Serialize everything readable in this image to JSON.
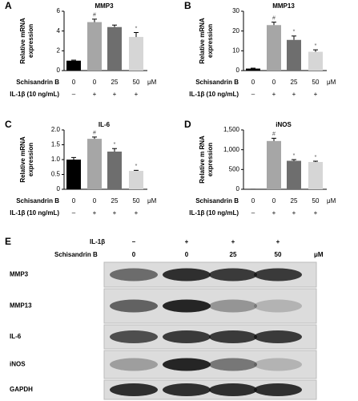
{
  "chart_data": [
    {
      "type": "bar",
      "panel": "A",
      "title": "MMP3",
      "ylabel": [
        "Relative mRNA",
        "expression"
      ],
      "row_labels": [
        "Schisandrin B",
        "IL-1β (10 ng/mL)"
      ],
      "categories": [
        "0",
        "0",
        "25",
        "50"
      ],
      "treatment": [
        "–",
        "+",
        "+",
        "+"
      ],
      "unit": "μM",
      "values": [
        1.0,
        4.9,
        4.4,
        3.4
      ],
      "errors": [
        0.05,
        0.3,
        0.2,
        0.45
      ],
      "annotations": [
        null,
        "#",
        null,
        "*"
      ],
      "colors": [
        "#000000",
        "#a6a6a6",
        "#6e6e6e",
        "#d6d6d6"
      ],
      "ylim": [
        0,
        6
      ],
      "yticks": [
        0,
        2,
        4,
        6
      ]
    },
    {
      "type": "bar",
      "panel": "B",
      "title": "MMP13",
      "ylabel": [
        "Relative mRNA",
        "expression"
      ],
      "row_labels": [
        "Schisandrin B",
        "IL-1β (10 ng/mL)"
      ],
      "categories": [
        "0",
        "0",
        "25",
        "50"
      ],
      "treatment": [
        "–",
        "+",
        "+",
        "+"
      ],
      "unit": "μM",
      "values": [
        1,
        23,
        15.5,
        9.5
      ],
      "errors": [
        0.2,
        1.5,
        2,
        1
      ],
      "annotations": [
        null,
        "#",
        "*",
        "*"
      ],
      "colors": [
        "#000000",
        "#a6a6a6",
        "#6e6e6e",
        "#d6d6d6"
      ],
      "ylim": [
        0,
        30
      ],
      "yticks": [
        0,
        10,
        20,
        30
      ]
    },
    {
      "type": "bar",
      "panel": "C",
      "title": "IL-6",
      "ylabel": [
        "Relative mRNA",
        "expression"
      ],
      "row_labels": [
        "Schisandrin B",
        "IL-1β (10 ng/mL)"
      ],
      "categories": [
        "0",
        "0",
        "25",
        "50"
      ],
      "treatment": [
        "–",
        "+",
        "+",
        "+"
      ],
      "unit": "μM",
      "values": [
        1.0,
        1.7,
        1.27,
        0.62
      ],
      "errors": [
        0.07,
        0.06,
        0.1,
        0.02
      ],
      "annotations": [
        null,
        "#",
        "*",
        "*"
      ],
      "colors": [
        "#000000",
        "#a6a6a6",
        "#6e6e6e",
        "#d6d6d6"
      ],
      "ylim": [
        0,
        2
      ],
      "yticks": [
        0,
        0.5,
        {
          "value": 1,
          "label": "1.0"
        },
        1.5,
        {
          "value": 2,
          "label": "2.0"
        }
      ]
    },
    {
      "type": "bar",
      "panel": "D",
      "title": "iNOS",
      "ylabel": [
        "Relative m RNA",
        "expression"
      ],
      "row_labels": [
        "Schisandrin B",
        "IL-1β (10 ng/mL)"
      ],
      "categories": [
        "0",
        "0",
        "25",
        "50"
      ],
      "treatment": [
        "–",
        "+",
        "+",
        "+"
      ],
      "unit": "μM",
      "values": [
        1,
        1220,
        720,
        690
      ],
      "errors": [
        0,
        70,
        30,
        20
      ],
      "annotations": [
        null,
        "#",
        "*",
        "*"
      ],
      "colors": [
        "#000000",
        "#a6a6a6",
        "#6e6e6e",
        "#d6d6d6"
      ],
      "ylim": [
        0,
        1500
      ],
      "yticks": [
        0,
        500,
        {
          "value": 1000,
          "label": "1,000"
        },
        {
          "value": 1500,
          "label": "1,500"
        }
      ]
    }
  ],
  "blot": {
    "panel": "E",
    "header_labels": [
      "IL-1β",
      "Schisandrin B"
    ],
    "treatment": [
      "–",
      "+",
      "+",
      "+"
    ],
    "doses": [
      "0",
      "0",
      "25",
      "50"
    ],
    "unit": "μM",
    "rows": [
      "MMP3",
      "MMP13",
      "IL-6",
      "iNOS",
      "GAPDH"
    ]
  }
}
